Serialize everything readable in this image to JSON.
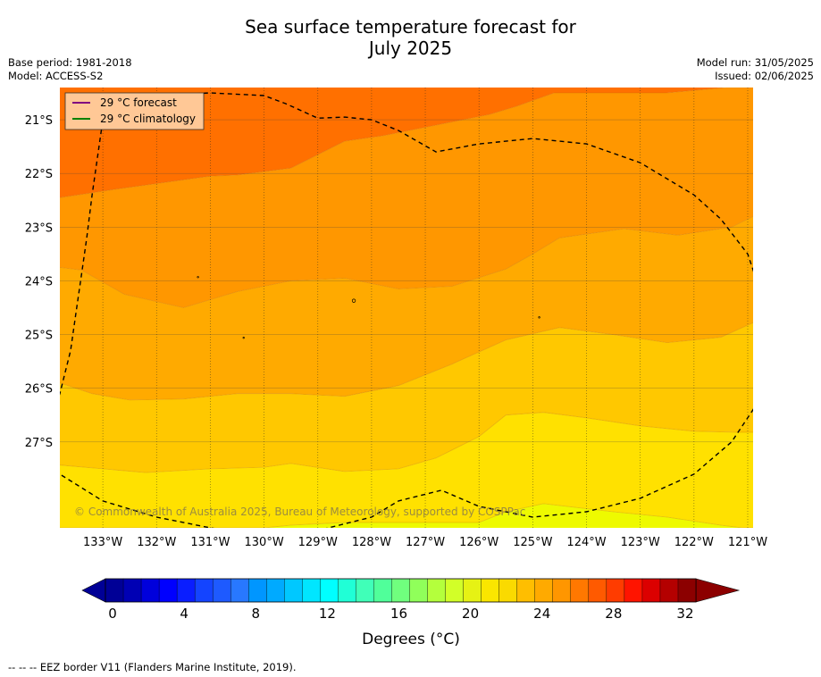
{
  "title_line1": "Sea surface temperature forecast for",
  "title_line2": "July 2025",
  "meta_left": [
    "Base period: 1981-2018",
    "Model: ACCESS-S2"
  ],
  "meta_right": [
    "Model run: 31/05/2025",
    "Issued: 02/06/2025"
  ],
  "legend": [
    {
      "label": "29 °C  forecast",
      "color": "#800080"
    },
    {
      "label": "29 °C  climatology",
      "color": "#008000"
    }
  ],
  "copyright": "© Commonwealth of Australia 2025, Bureau of Meteorology, supported by COSPPac",
  "colorbar_label": "Degrees (°C)",
  "footnote": "--  --  -- EEZ border V11 (Flanders Marine Institute, 2019).",
  "chart_data": {
    "type": "heatmap",
    "x_ticks": [
      "133°W",
      "132°W",
      "131°W",
      "130°W",
      "129°W",
      "128°W",
      "127°W",
      "126°W",
      "125°W",
      "124°W",
      "123°W",
      "122°W",
      "121°W"
    ],
    "y_ticks": [
      "21°S",
      "22°S",
      "23°S",
      "24°S",
      "25°S",
      "26°S",
      "27°S"
    ],
    "xlim": [
      -133.8,
      -120.9
    ],
    "ylim": [
      -28.6,
      -20.4
    ],
    "colorbar_ticks": [
      "0",
      "4",
      "8",
      "12",
      "16",
      "20",
      "24",
      "28",
      "32"
    ],
    "colorbar_range": [
      0,
      33
    ],
    "colorbar_step": 1,
    "colorbar_colors": [
      "#000096",
      "#0000b4",
      "#0000dc",
      "#0000ff",
      "#0a1eff",
      "#1444ff",
      "#1e5aff",
      "#2878ff",
      "#0096ff",
      "#00aaff",
      "#00c8ff",
      "#00e6ff",
      "#00ffff",
      "#20ffd6",
      "#40ffb8",
      "#50ff9a",
      "#70ff7e",
      "#90ff5a",
      "#b4ff3c",
      "#d2ff28",
      "#e6f214",
      "#fae600",
      "#fada00",
      "#ffbe00",
      "#ffaa00",
      "#ff9600",
      "#ff7800",
      "#ff5a00",
      "#ff3c00",
      "#ff1400",
      "#dc0000",
      "#b40000",
      "#8c0000"
    ],
    "colorbar_under": "#000096",
    "colorbar_over": "#8c0000",
    "bands": [
      {
        "color": "#ff7000",
        "min": 27,
        "max": 28,
        "upper": [
          [
            -133.8,
            -20.4
          ],
          [
            -120.9,
            -20.4
          ]
        ],
        "lower": [
          [
            -133.8,
            -22.45
          ],
          [
            -132.8,
            -22.3
          ],
          [
            -131,
            -22.05
          ],
          [
            -130.5,
            -22.03
          ],
          [
            -129.5,
            -21.9
          ],
          [
            -128.5,
            -21.4
          ],
          [
            -127.8,
            -21.3
          ],
          [
            -126.8,
            -21.1
          ],
          [
            -125.8,
            -20.9
          ],
          [
            -125.3,
            -20.75
          ],
          [
            -124.6,
            -20.5
          ],
          [
            -122.5,
            -20.5
          ],
          [
            -121.4,
            -20.4
          ],
          [
            -120.9,
            -20.4
          ]
        ]
      },
      {
        "color": "#ff9700",
        "min": 26,
        "max": 27,
        "lower": [
          [
            -133.8,
            -23.75
          ],
          [
            -133.4,
            -23.8
          ],
          [
            -132.6,
            -24.25
          ],
          [
            -131.5,
            -24.5
          ],
          [
            -130.5,
            -24.2
          ],
          [
            -129.5,
            -24.0
          ],
          [
            -128.5,
            -23.95
          ],
          [
            -127.5,
            -24.15
          ],
          [
            -126.5,
            -24.1
          ],
          [
            -125.5,
            -23.78
          ],
          [
            -125,
            -23.5
          ],
          [
            -124.5,
            -23.2
          ],
          [
            -123.3,
            -23.03
          ],
          [
            -122.3,
            -23.15
          ],
          [
            -121.3,
            -23.0
          ],
          [
            -120.9,
            -22.8
          ]
        ]
      },
      {
        "color": "#ffaa00",
        "min": 25,
        "max": 26,
        "lower": [
          [
            -133.8,
            -25.9
          ],
          [
            -133.2,
            -26.1
          ],
          [
            -132.5,
            -26.22
          ],
          [
            -131.5,
            -26.2
          ],
          [
            -130.5,
            -26.1
          ],
          [
            -129.5,
            -26.1
          ],
          [
            -128.5,
            -26.15
          ],
          [
            -127.5,
            -25.95
          ],
          [
            -126.5,
            -25.55
          ],
          [
            -125.5,
            -25.1
          ],
          [
            -124.5,
            -24.87
          ],
          [
            -123.5,
            -25.0
          ],
          [
            -122.5,
            -25.15
          ],
          [
            -121.5,
            -25.05
          ],
          [
            -120.9,
            -24.78
          ]
        ]
      },
      {
        "color": "#ffc800",
        "min": 24,
        "max": 25,
        "lower": [
          [
            -133.8,
            -27.43
          ],
          [
            -133,
            -27.5
          ],
          [
            -132.2,
            -27.57
          ],
          [
            -131,
            -27.5
          ],
          [
            -130,
            -27.47
          ],
          [
            -129.5,
            -27.4
          ],
          [
            -128.5,
            -27.55
          ],
          [
            -127.5,
            -27.5
          ],
          [
            -126.8,
            -27.3
          ],
          [
            -126,
            -26.9
          ],
          [
            -125.5,
            -26.5
          ],
          [
            -124.8,
            -26.45
          ],
          [
            -124,
            -26.55
          ],
          [
            -123,
            -26.7
          ],
          [
            -122,
            -26.8
          ],
          [
            -121.2,
            -26.82
          ],
          [
            -120.9,
            -26.82
          ]
        ]
      },
      {
        "color": "#ffe100",
        "min": 23,
        "max": 24,
        "lower": [
          [
            -133.8,
            -28.6
          ],
          [
            -130,
            -28.6
          ],
          [
            -129.5,
            -28.55
          ],
          [
            -128.5,
            -28.5
          ],
          [
            -126,
            -28.5
          ],
          [
            -125.5,
            -28.3
          ],
          [
            -124.8,
            -28.15
          ],
          [
            -123.5,
            -28.3
          ],
          [
            -122.5,
            -28.4
          ],
          [
            -121.5,
            -28.55
          ],
          [
            -121.1,
            -28.6
          ],
          [
            -120.9,
            -28.6
          ]
        ]
      },
      {
        "color": "#eefa00",
        "min": 22,
        "max": 23,
        "lower": [
          [
            -133.8,
            -28.6
          ],
          [
            -120.9,
            -28.6
          ]
        ]
      }
    ],
    "eez_border": [
      [
        -132.9,
        -20.6
      ],
      [
        -133,
        -21.0
      ],
      [
        -133.1,
        -21.7
      ],
      [
        -133.2,
        -22.4
      ],
      [
        -133.3,
        -23.2
      ],
      [
        -133.4,
        -23.9
      ],
      [
        -133.5,
        -24.6
      ],
      [
        -133.6,
        -25.3
      ],
      [
        -133.8,
        -26.1
      ],
      [
        -134.2,
        -27.1
      ],
      [
        -133.8,
        -27.6
      ],
      [
        -133,
        -28.1
      ],
      [
        -132,
        -28.4
      ],
      [
        -131,
        -28.6
      ],
      [
        -130,
        -28.75
      ],
      [
        -129,
        -28.65
      ],
      [
        -128,
        -28.4
      ],
      [
        -127.5,
        -28.1
      ],
      [
        -126.7,
        -27.9
      ],
      [
        -126,
        -28.2
      ],
      [
        -125,
        -28.4
      ],
      [
        -124,
        -28.3
      ],
      [
        -123,
        -28.05
      ],
      [
        -122,
        -27.6
      ],
      [
        -121.3,
        -27.0
      ],
      [
        -120.9,
        -26.4
      ],
      [
        -120.65,
        -25.4
      ],
      [
        -120.7,
        -24.4
      ],
      [
        -121,
        -23.5
      ],
      [
        -121.5,
        -22.85
      ],
      [
        -122,
        -22.4
      ],
      [
        -123,
        -21.8
      ],
      [
        -124,
        -21.45
      ],
      [
        -125,
        -21.35
      ],
      [
        -126,
        -21.45
      ],
      [
        -126.8,
        -21.6
      ],
      [
        -127.5,
        -21.2
      ],
      [
        -128,
        -21.0
      ],
      [
        -128.5,
        -20.95
      ],
      [
        -129,
        -20.97
      ],
      [
        -129.6,
        -20.7
      ],
      [
        -130,
        -20.55
      ],
      [
        -131,
        -20.5
      ],
      [
        -132,
        -20.55
      ],
      [
        -132.9,
        -20.6
      ]
    ],
    "islands": [
      [
        -128.33,
        -24.37
      ],
      [
        -131.23,
        -23.93
      ],
      [
        -130.38,
        -25.06
      ],
      [
        -124.88,
        -24.68
      ]
    ]
  }
}
